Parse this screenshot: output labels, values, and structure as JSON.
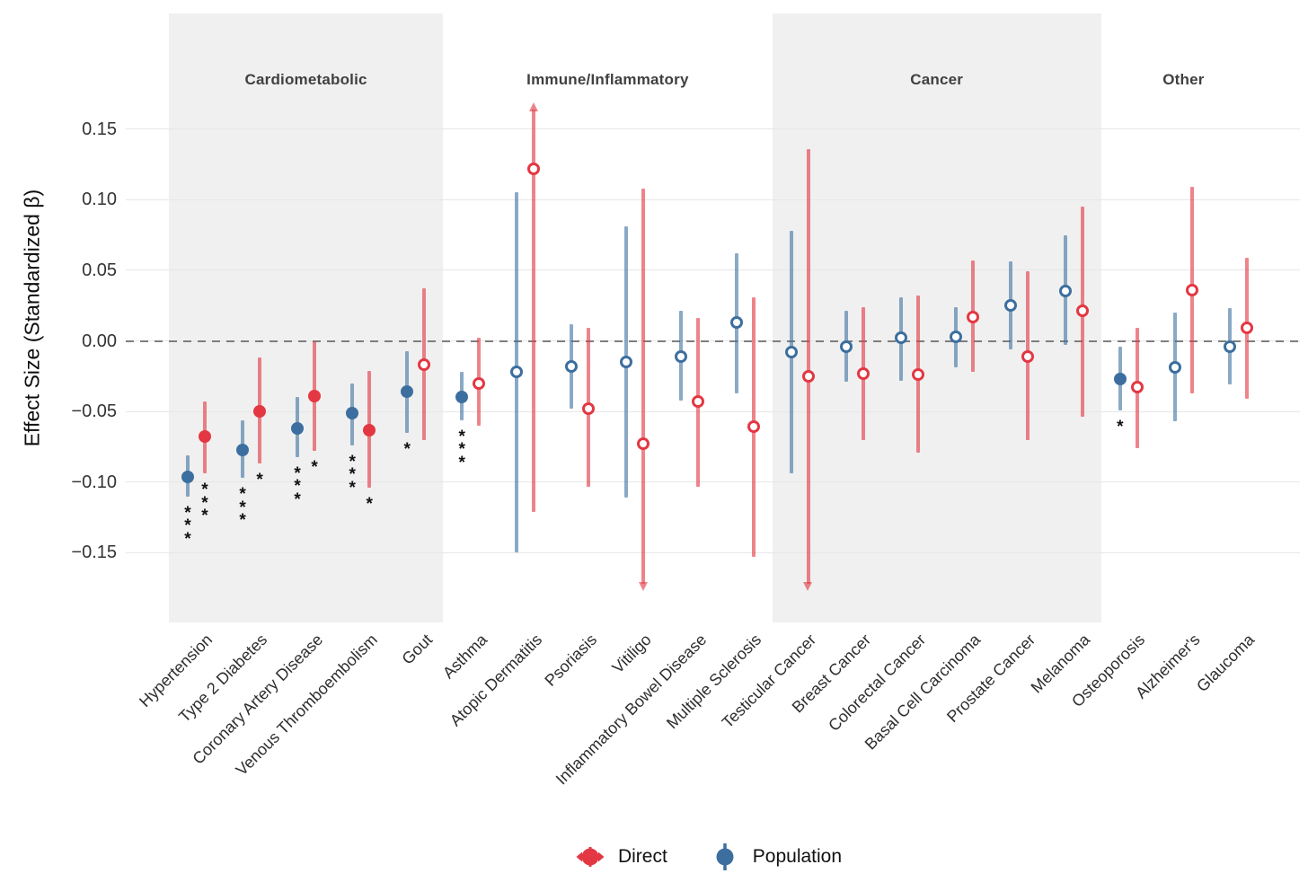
{
  "figure": {
    "y_axis_title": "Effect Size (Standardized β)",
    "y_tick_labels": [
      "0.15",
      "0.10",
      "0.05",
      "0.00",
      "−0.05",
      "−0.10",
      "−0.15"
    ]
  },
  "legend": {
    "items": [
      {
        "name": "direct",
        "label": "Direct",
        "color": "#E33843"
      },
      {
        "name": "population",
        "label": "Population",
        "color": "#3C6F9F"
      }
    ]
  },
  "chart_data": {
    "type": "scatter",
    "subtype": "forest-plot-pointrange",
    "title": "",
    "ylabel": "Effect Size (Standardized β)",
    "xlabel": "",
    "ylim": [
      -0.199,
      0.232
    ],
    "yticks": [
      0.15,
      0.1,
      0.05,
      0.0,
      -0.05,
      -0.1,
      -0.15
    ],
    "zero_reference_line": 0,
    "grid": "horizontal",
    "legend_position": "bottom",
    "series_colors": {
      "direct": "#E33843",
      "population": "#3C6F9F"
    },
    "band_color": "#F0F0F0",
    "significance_note": "asterisks below interval indicate significance",
    "groups": [
      {
        "label": "Cardiometabolic",
        "shaded": true,
        "diseases": [
          "Hypertension",
          "Type 2 Diabetes",
          "Coronary Artery Disease",
          "Venous Thromboembolism",
          "Gout"
        ]
      },
      {
        "label": "Immune/Inflammatory",
        "shaded": false,
        "diseases": [
          "Asthma",
          "Atopic Dermatitis",
          "Psoriasis",
          "Vitiligo",
          "Inflammatory Bowel Disease",
          "Multiple Sclerosis"
        ]
      },
      {
        "label": "Cancer",
        "shaded": true,
        "diseases": [
          "Testicular Cancer",
          "Breast Cancer",
          "Colorectal Cancer",
          "Basal Cell Carcinoma",
          "Prostate Cancer",
          "Melanoma"
        ]
      },
      {
        "label": "Other",
        "shaded": false,
        "diseases": [
          "Osteoporosis",
          "Alzheimer's",
          "Glaucoma"
        ]
      }
    ],
    "points": [
      {
        "disease": "Hypertension",
        "population": {
          "est": -0.096,
          "lo": -0.11,
          "hi": -0.081,
          "filled": true,
          "sig": "***"
        },
        "direct": {
          "est": -0.068,
          "lo": -0.094,
          "hi": -0.043,
          "filled": true,
          "sig": "***"
        }
      },
      {
        "disease": "Type 2 Diabetes",
        "population": {
          "est": -0.077,
          "lo": -0.097,
          "hi": -0.056,
          "filled": true,
          "sig": "***"
        },
        "direct": {
          "est": -0.05,
          "lo": -0.087,
          "hi": -0.012,
          "filled": true,
          "sig": "*"
        }
      },
      {
        "disease": "Coronary Artery Disease",
        "population": {
          "est": -0.062,
          "lo": -0.082,
          "hi": -0.04,
          "filled": true,
          "sig": "***"
        },
        "direct": {
          "est": -0.039,
          "lo": -0.078,
          "hi": 0.0,
          "filled": true,
          "sig": "*"
        }
      },
      {
        "disease": "Venous Thromboembolism",
        "population": {
          "est": -0.051,
          "lo": -0.074,
          "hi": -0.03,
          "filled": true,
          "sig": "***"
        },
        "direct": {
          "est": -0.063,
          "lo": -0.104,
          "hi": -0.021,
          "filled": true,
          "sig": "*"
        }
      },
      {
        "disease": "Gout",
        "population": {
          "est": -0.036,
          "lo": -0.065,
          "hi": -0.007,
          "filled": true,
          "sig": "*"
        },
        "direct": {
          "est": -0.017,
          "lo": -0.07,
          "hi": 0.037,
          "filled": false,
          "sig": ""
        }
      },
      {
        "disease": "Asthma",
        "population": {
          "est": -0.04,
          "lo": -0.056,
          "hi": -0.022,
          "filled": true,
          "sig": "***"
        },
        "direct": {
          "est": -0.03,
          "lo": -0.06,
          "hi": 0.002,
          "filled": false,
          "sig": ""
        }
      },
      {
        "disease": "Atopic Dermatitis",
        "population": {
          "est": -0.022,
          "lo": -0.15,
          "hi": 0.105,
          "filled": false,
          "sig": ""
        },
        "direct": {
          "est": 0.122,
          "lo": -0.121,
          "hi": 0.169,
          "filled": false,
          "sig": "",
          "arrow": "up"
        }
      },
      {
        "disease": "Psoriasis",
        "population": {
          "est": -0.018,
          "lo": -0.048,
          "hi": 0.012,
          "filled": false,
          "sig": ""
        },
        "direct": {
          "est": -0.048,
          "lo": -0.103,
          "hi": 0.009,
          "filled": false,
          "sig": ""
        }
      },
      {
        "disease": "Vitiligo",
        "population": {
          "est": -0.015,
          "lo": -0.111,
          "hi": 0.081,
          "filled": false,
          "sig": ""
        },
        "direct": {
          "est": -0.073,
          "lo": -0.177,
          "hi": 0.108,
          "filled": false,
          "sig": "",
          "arrow": "down"
        }
      },
      {
        "disease": "Inflammatory Bowel Disease",
        "population": {
          "est": -0.011,
          "lo": -0.042,
          "hi": 0.021,
          "filled": false,
          "sig": ""
        },
        "direct": {
          "est": -0.043,
          "lo": -0.103,
          "hi": 0.016,
          "filled": false,
          "sig": ""
        }
      },
      {
        "disease": "Multiple Sclerosis",
        "population": {
          "est": 0.013,
          "lo": -0.037,
          "hi": 0.062,
          "filled": false,
          "sig": ""
        },
        "direct": {
          "est": -0.061,
          "lo": -0.153,
          "hi": 0.031,
          "filled": false,
          "sig": ""
        }
      },
      {
        "disease": "Testicular Cancer",
        "population": {
          "est": -0.008,
          "lo": -0.094,
          "hi": 0.078,
          "filled": false,
          "sig": ""
        },
        "direct": {
          "est": -0.025,
          "lo": -0.177,
          "hi": 0.136,
          "filled": false,
          "sig": "",
          "arrow": "down"
        }
      },
      {
        "disease": "Breast Cancer",
        "population": {
          "est": -0.004,
          "lo": -0.029,
          "hi": 0.021,
          "filled": false,
          "sig": ""
        },
        "direct": {
          "est": -0.023,
          "lo": -0.07,
          "hi": 0.024,
          "filled": false,
          "sig": ""
        }
      },
      {
        "disease": "Colorectal Cancer",
        "population": {
          "est": 0.002,
          "lo": -0.028,
          "hi": 0.031,
          "filled": false,
          "sig": ""
        },
        "direct": {
          "est": -0.024,
          "lo": -0.079,
          "hi": 0.032,
          "filled": false,
          "sig": ""
        }
      },
      {
        "disease": "Basal Cell Carcinoma",
        "population": {
          "est": 0.003,
          "lo": -0.019,
          "hi": 0.024,
          "filled": false,
          "sig": ""
        },
        "direct": {
          "est": 0.017,
          "lo": -0.022,
          "hi": 0.057,
          "filled": false,
          "sig": ""
        }
      },
      {
        "disease": "Prostate Cancer",
        "population": {
          "est": 0.025,
          "lo": -0.006,
          "hi": 0.056,
          "filled": false,
          "sig": ""
        },
        "direct": {
          "est": -0.011,
          "lo": -0.07,
          "hi": 0.049,
          "filled": false,
          "sig": ""
        }
      },
      {
        "disease": "Melanoma",
        "population": {
          "est": 0.035,
          "lo": -0.003,
          "hi": 0.075,
          "filled": false,
          "sig": ""
        },
        "direct": {
          "est": 0.021,
          "lo": -0.054,
          "hi": 0.095,
          "filled": false,
          "sig": ""
        }
      },
      {
        "disease": "Osteoporosis",
        "population": {
          "est": -0.027,
          "lo": -0.049,
          "hi": -0.004,
          "filled": true,
          "sig": "*"
        },
        "direct": {
          "est": -0.033,
          "lo": -0.076,
          "hi": 0.009,
          "filled": false,
          "sig": ""
        }
      },
      {
        "disease": "Alzheimer's",
        "population": {
          "est": -0.019,
          "lo": -0.057,
          "hi": 0.02,
          "filled": false,
          "sig": ""
        },
        "direct": {
          "est": 0.036,
          "lo": -0.037,
          "hi": 0.109,
          "filled": false,
          "sig": ""
        }
      },
      {
        "disease": "Glaucoma",
        "population": {
          "est": -0.004,
          "lo": -0.031,
          "hi": 0.023,
          "filled": false,
          "sig": ""
        },
        "direct": {
          "est": 0.009,
          "lo": -0.041,
          "hi": 0.059,
          "filled": false,
          "sig": ""
        }
      }
    ]
  }
}
